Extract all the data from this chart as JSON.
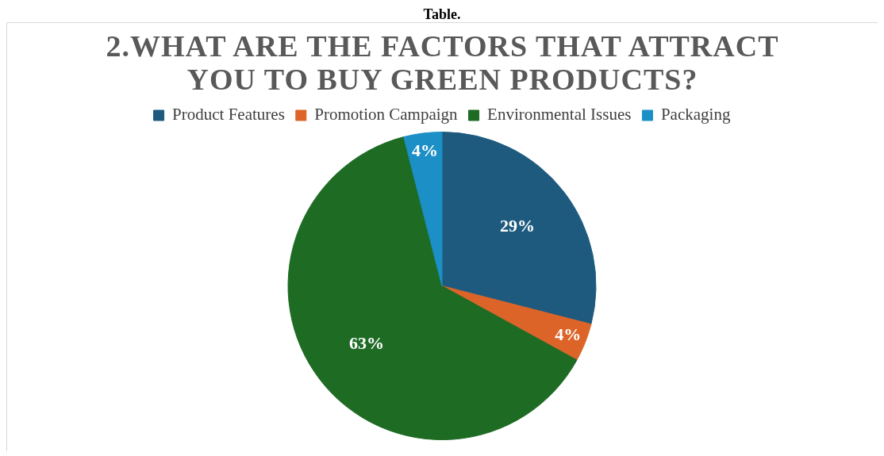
{
  "chart_data": {
    "type": "pie",
    "title": "2.WHAT ARE THE FACTORS THAT ATTRACT YOU TO BUY GREEN PRODUCTS?",
    "annotations": [
      "Table."
    ],
    "categories": [
      "Product Features",
      "Promotion Campaign",
      "Environmental Issues",
      "Packaging"
    ],
    "values": [
      29,
      4,
      63,
      4
    ],
    "colors": [
      "#1d5a7e",
      "#dc6428",
      "#1e6b24",
      "#1b8fc6"
    ],
    "value_labels": [
      "29%",
      "4%",
      "63%",
      "4%"
    ],
    "legend": "top"
  }
}
